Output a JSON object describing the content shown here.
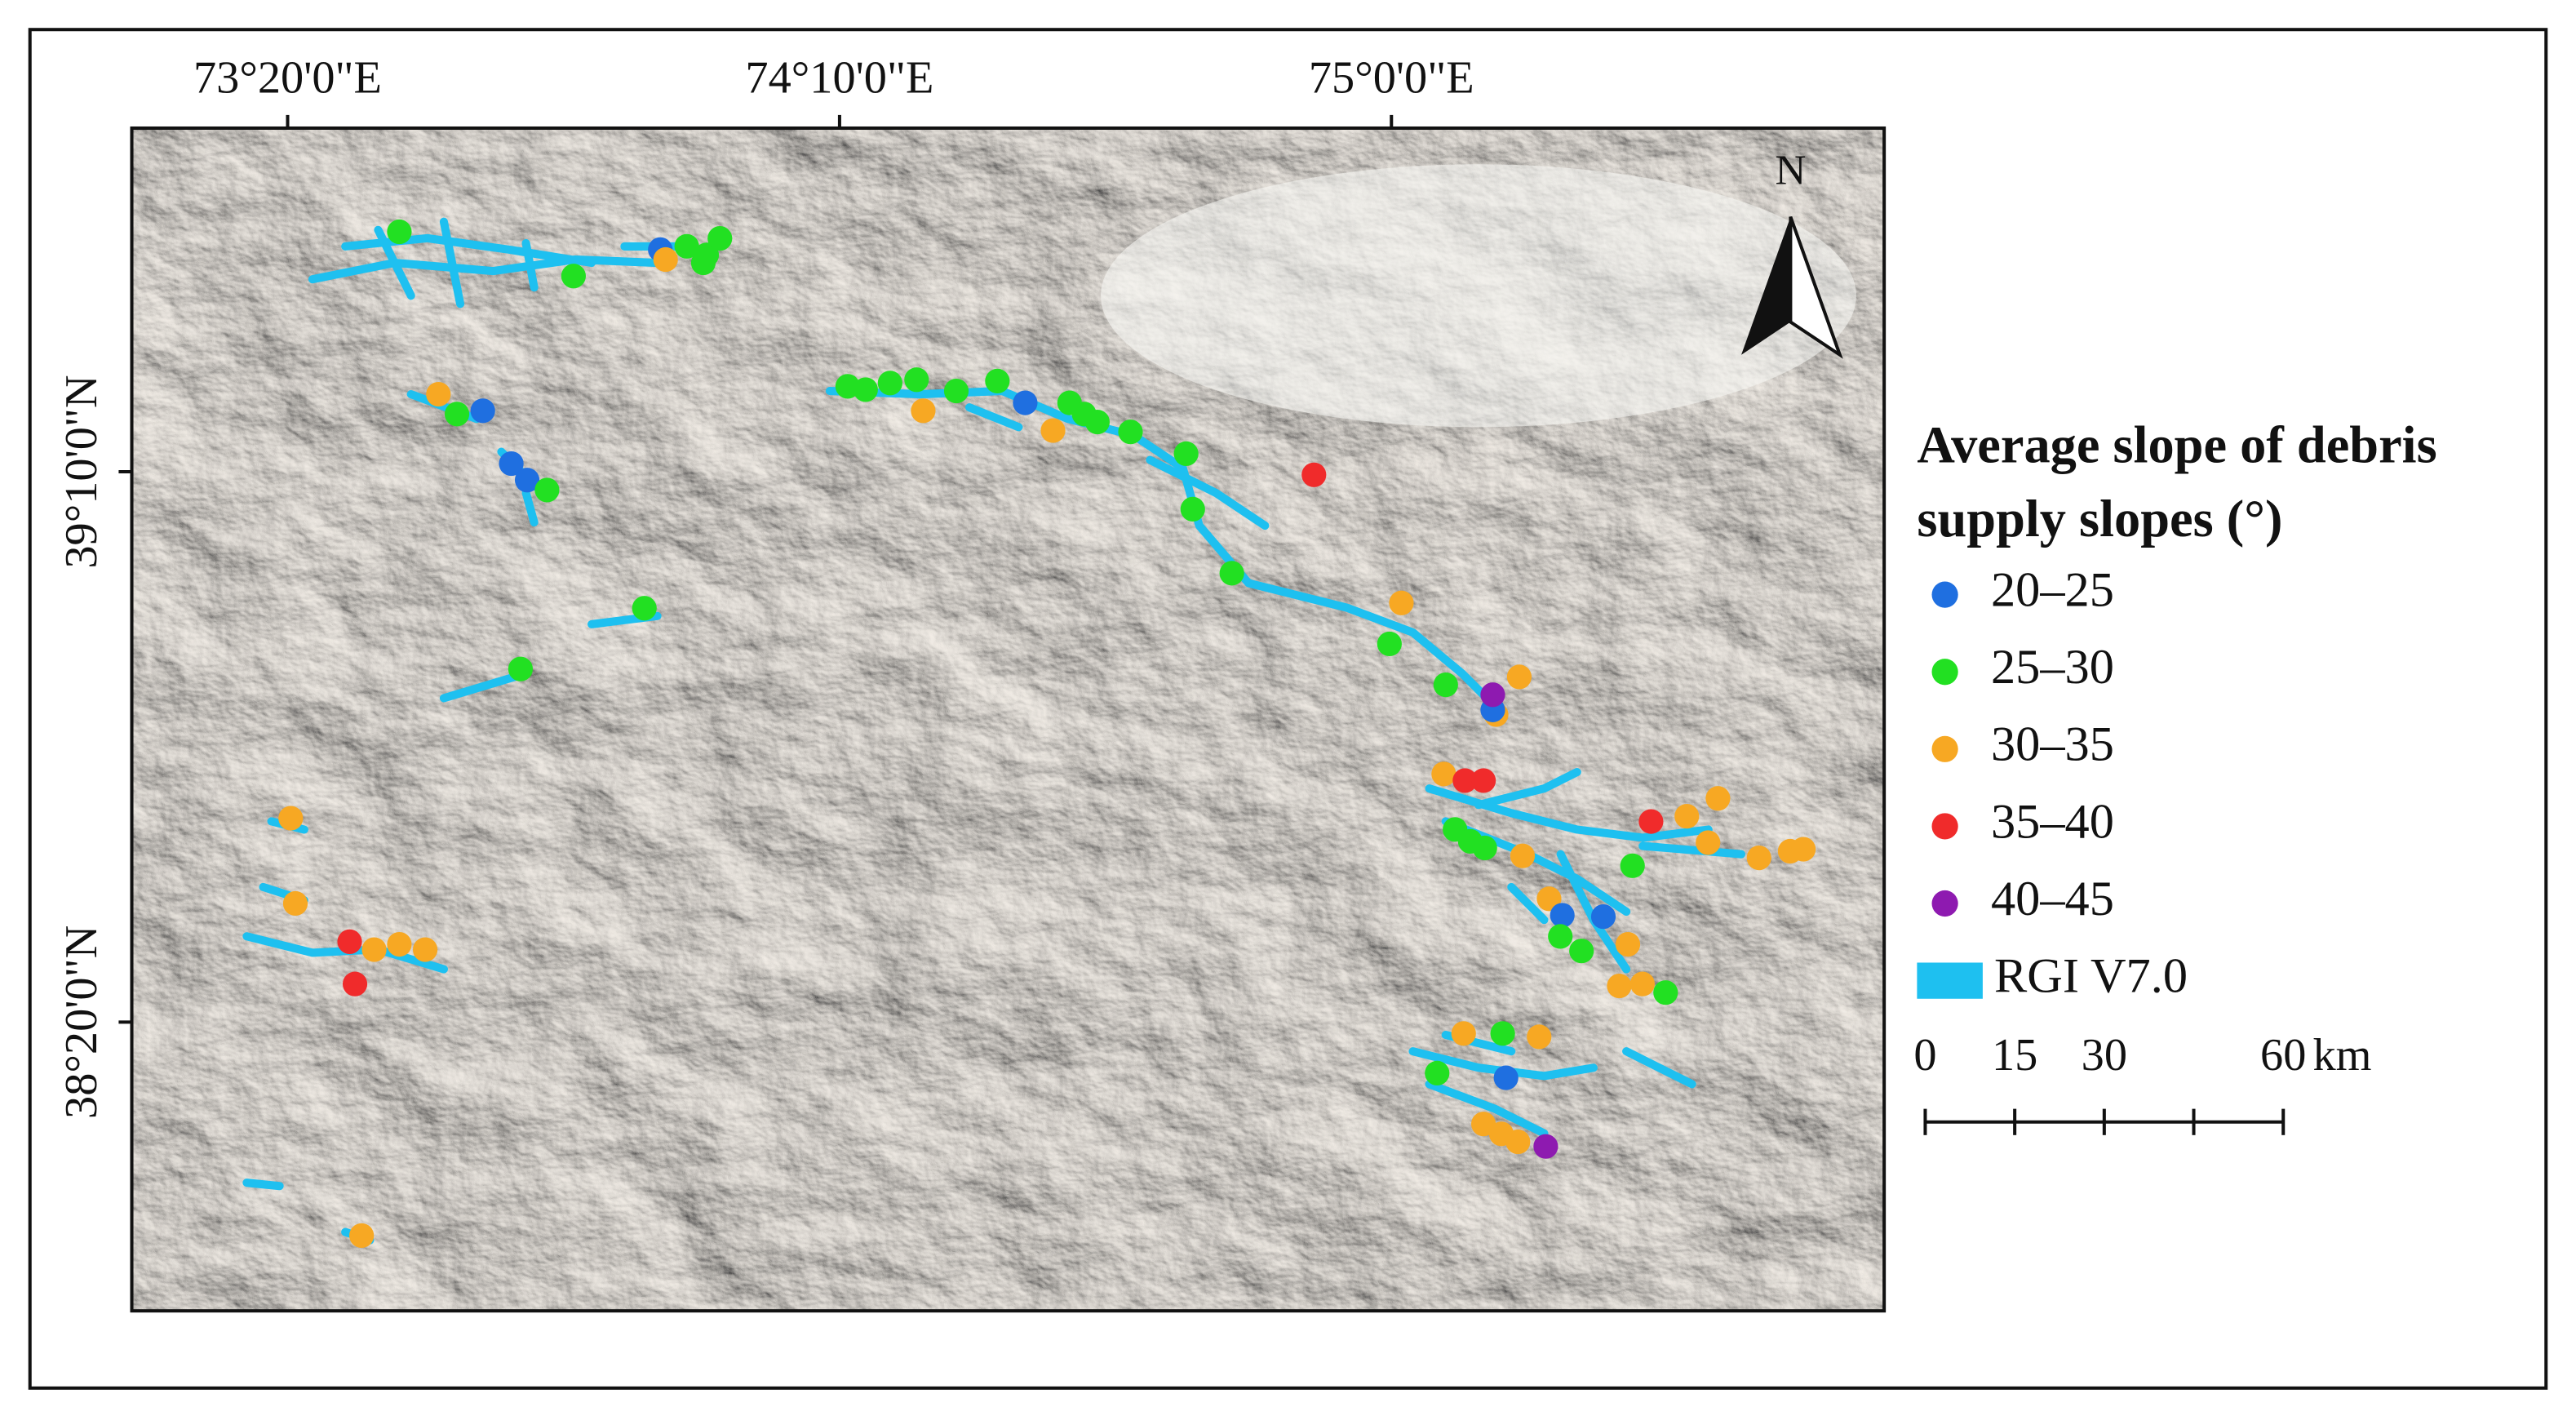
{
  "map_data": {
    "xlim": [
      73.098,
      75.744
    ],
    "ylim": [
      37.896,
      39.687
    ],
    "xticks": [
      {
        "value": 73.3333,
        "label": "73°20'0\"E"
      },
      {
        "value": 74.1667,
        "label": "74°10'0\"E"
      },
      {
        "value": 75.0,
        "label": "75°0'0\"E"
      }
    ],
    "yticks": [
      {
        "value": 39.1667,
        "label": "39°10'0\"N"
      },
      {
        "value": 38.3333,
        "label": "38°20'0\"N"
      }
    ],
    "north_label": "N",
    "legend": {
      "title": [
        "Average slope of debris",
        "supply slopes (°)"
      ],
      "classes": [
        {
          "label": "20–25",
          "color": "#1f6fe0"
        },
        {
          "label": "25–30",
          "color": "#22e022"
        },
        {
          "label": "30–35",
          "color": "#f7a823"
        },
        {
          "label": "35–40",
          "color": "#f02b2b"
        },
        {
          "label": "40–45",
          "color": "#8e1ab0"
        }
      ],
      "glacier": {
        "label": "RGI V7.0",
        "color": "#1ec0f0"
      }
    },
    "scale_bar": {
      "ticks": [
        0,
        15,
        30,
        {
          "value": 45,
          "label": null
        },
        60
      ],
      "unit": "km"
    },
    "points": [
      {
        "lon": 73.502,
        "lat": 39.53,
        "class": 1
      },
      {
        "lon": 73.765,
        "lat": 39.463,
        "class": 1
      },
      {
        "lon": 73.896,
        "lat": 39.503,
        "class": 0
      },
      {
        "lon": 73.904,
        "lat": 39.488,
        "class": 2
      },
      {
        "lon": 73.936,
        "lat": 39.508,
        "class": 1
      },
      {
        "lon": 73.966,
        "lat": 39.495,
        "class": 1
      },
      {
        "lon": 73.986,
        "lat": 39.52,
        "class": 1
      },
      {
        "lon": 73.961,
        "lat": 39.483,
        "class": 1
      },
      {
        "lon": 73.561,
        "lat": 39.284,
        "class": 2
      },
      {
        "lon": 73.589,
        "lat": 39.254,
        "class": 1
      },
      {
        "lon": 73.628,
        "lat": 39.259,
        "class": 0
      },
      {
        "lon": 73.671,
        "lat": 39.179,
        "class": 0
      },
      {
        "lon": 73.695,
        "lat": 39.154,
        "class": 0
      },
      {
        "lon": 73.725,
        "lat": 39.139,
        "class": 1
      },
      {
        "lon": 73.872,
        "lat": 38.96,
        "class": 1
      },
      {
        "lon": 73.685,
        "lat": 38.868,
        "class": 1
      },
      {
        "lon": 74.179,
        "lat": 39.296,
        "class": 1
      },
      {
        "lon": 74.206,
        "lat": 39.291,
        "class": 1
      },
      {
        "lon": 74.243,
        "lat": 39.301,
        "class": 1
      },
      {
        "lon": 74.283,
        "lat": 39.306,
        "class": 1
      },
      {
        "lon": 74.293,
        "lat": 39.259,
        "class": 2
      },
      {
        "lon": 74.343,
        "lat": 39.289,
        "class": 1
      },
      {
        "lon": 74.405,
        "lat": 39.304,
        "class": 1
      },
      {
        "lon": 74.447,
        "lat": 39.271,
        "class": 0
      },
      {
        "lon": 74.489,
        "lat": 39.229,
        "class": 2
      },
      {
        "lon": 74.514,
        "lat": 39.271,
        "class": 1
      },
      {
        "lon": 74.536,
        "lat": 39.254,
        "class": 1
      },
      {
        "lon": 74.556,
        "lat": 39.242,
        "class": 1
      },
      {
        "lon": 74.606,
        "lat": 39.227,
        "class": 1
      },
      {
        "lon": 74.69,
        "lat": 39.194,
        "class": 1
      },
      {
        "lon": 74.7,
        "lat": 39.11,
        "class": 1
      },
      {
        "lon": 74.759,
        "lat": 39.013,
        "class": 1
      },
      {
        "lon": 74.883,
        "lat": 39.162,
        "class": 3
      },
      {
        "lon": 75.015,
        "lat": 38.968,
        "class": 2
      },
      {
        "lon": 74.997,
        "lat": 38.906,
        "class": 1
      },
      {
        "lon": 75.082,
        "lat": 38.844,
        "class": 1
      },
      {
        "lon": 75.158,
        "lat": 38.799,
        "class": 2
      },
      {
        "lon": 75.153,
        "lat": 38.806,
        "class": 0
      },
      {
        "lon": 75.153,
        "lat": 38.829,
        "class": 4
      },
      {
        "lon": 75.193,
        "lat": 38.856,
        "class": 2
      },
      {
        "lon": 75.079,
        "lat": 38.709,
        "class": 2
      },
      {
        "lon": 75.111,
        "lat": 38.699,
        "class": 3
      },
      {
        "lon": 75.139,
        "lat": 38.699,
        "class": 3
      },
      {
        "lon": 75.096,
        "lat": 38.625,
        "class": 1
      },
      {
        "lon": 75.119,
        "lat": 38.607,
        "class": 1
      },
      {
        "lon": 75.141,
        "lat": 38.597,
        "class": 1
      },
      {
        "lon": 75.198,
        "lat": 38.585,
        "class": 2
      },
      {
        "lon": 75.238,
        "lat": 38.52,
        "class": 2
      },
      {
        "lon": 75.258,
        "lat": 38.495,
        "class": 0
      },
      {
        "lon": 75.32,
        "lat": 38.493,
        "class": 0
      },
      {
        "lon": 75.364,
        "lat": 38.57,
        "class": 1
      },
      {
        "lon": 75.392,
        "lat": 38.637,
        "class": 3
      },
      {
        "lon": 75.446,
        "lat": 38.645,
        "class": 2
      },
      {
        "lon": 75.493,
        "lat": 38.672,
        "class": 2
      },
      {
        "lon": 75.478,
        "lat": 38.605,
        "class": 2
      },
      {
        "lon": 75.555,
        "lat": 38.582,
        "class": 2
      },
      {
        "lon": 75.602,
        "lat": 38.592,
        "class": 2
      },
      {
        "lon": 75.622,
        "lat": 38.595,
        "class": 2
      },
      {
        "lon": 75.255,
        "lat": 38.463,
        "class": 1
      },
      {
        "lon": 75.287,
        "lat": 38.441,
        "class": 1
      },
      {
        "lon": 75.357,
        "lat": 38.451,
        "class": 2
      },
      {
        "lon": 75.344,
        "lat": 38.388,
        "class": 2
      },
      {
        "lon": 75.379,
        "lat": 38.391,
        "class": 2
      },
      {
        "lon": 75.414,
        "lat": 38.378,
        "class": 1
      },
      {
        "lon": 75.109,
        "lat": 38.316,
        "class": 2
      },
      {
        "lon": 75.168,
        "lat": 38.316,
        "class": 1
      },
      {
        "lon": 75.223,
        "lat": 38.311,
        "class": 2
      },
      {
        "lon": 75.173,
        "lat": 38.249,
        "class": 0
      },
      {
        "lon": 75.069,
        "lat": 38.256,
        "class": 1
      },
      {
        "lon": 75.139,
        "lat": 38.179,
        "class": 2
      },
      {
        "lon": 75.166,
        "lat": 38.164,
        "class": 2
      },
      {
        "lon": 75.191,
        "lat": 38.152,
        "class": 2
      },
      {
        "lon": 75.233,
        "lat": 38.145,
        "class": 4
      },
      {
        "lon": 73.338,
        "lat": 38.642,
        "class": 2
      },
      {
        "lon": 73.345,
        "lat": 38.513,
        "class": 2
      },
      {
        "lon": 73.427,
        "lat": 38.455,
        "class": 3
      },
      {
        "lon": 73.435,
        "lat": 38.391,
        "class": 3
      },
      {
        "lon": 73.464,
        "lat": 38.443,
        "class": 2
      },
      {
        "lon": 73.502,
        "lat": 38.451,
        "class": 2
      },
      {
        "lon": 73.541,
        "lat": 38.443,
        "class": 2
      },
      {
        "lon": 73.445,
        "lat": 38.01,
        "class": 2
      }
    ]
  }
}
